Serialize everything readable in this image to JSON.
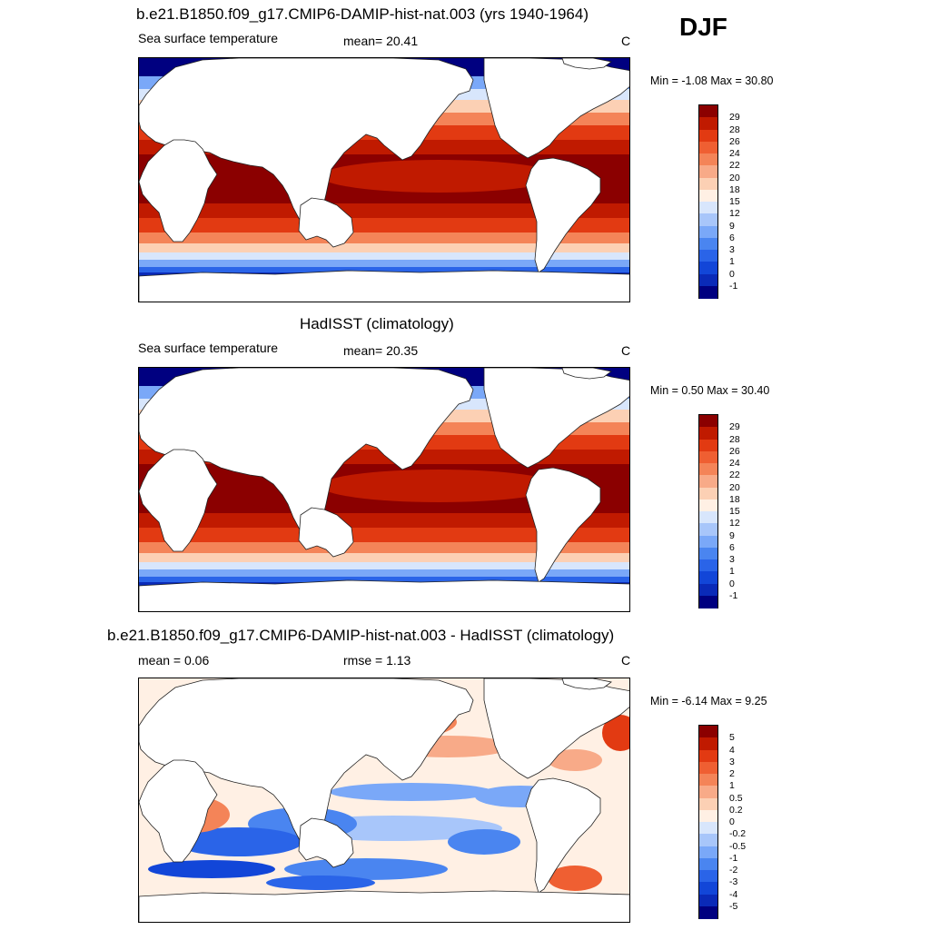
{
  "season": "DJF",
  "colors": {
    "abs": [
      "#000080",
      "#0a2ab8",
      "#1246d8",
      "#2a64e8",
      "#4a85f0",
      "#7aa8f8",
      "#a8c6fa",
      "#d8e6fc",
      "#fff0e4",
      "#fcd0b4",
      "#f8aa88",
      "#f48458",
      "#ef5f32",
      "#e23a12",
      "#c01a00",
      "#8b0000"
    ],
    "diff": [
      "#000080",
      "#0a2ab8",
      "#1246d8",
      "#2a64e8",
      "#4a85f0",
      "#7aa8f8",
      "#a8c6fa",
      "#d8e6fc",
      "#fff0e4",
      "#fcd0b4",
      "#f8aa88",
      "#f48458",
      "#ef5f32",
      "#e23a12",
      "#c01a00",
      "#8b0000"
    ]
  },
  "panels": [
    {
      "title": "b.e21.B1850.f09_g17.CMIP6-DAMIP-hist-nat.003 (yrs 1940-1964)",
      "left": "Sea surface temperature",
      "center": "mean=  20.41",
      "units": "C",
      "minmax": "Min =  -1.08 Max =  30.80",
      "levels": [
        "29",
        "28",
        "26",
        "24",
        "22",
        "20",
        "18",
        "15",
        "12",
        "9",
        "6",
        "3",
        "1",
        "0",
        "-1"
      ]
    },
    {
      "title": "HadISST (climatology)",
      "left": "Sea surface temperature",
      "center": "mean=  20.35",
      "units": "C",
      "minmax": "Min =   0.50 Max =  30.40",
      "levels": [
        "29",
        "28",
        "26",
        "24",
        "22",
        "20",
        "18",
        "15",
        "12",
        "9",
        "6",
        "3",
        "1",
        "0",
        "-1"
      ]
    },
    {
      "title": "b.e21.B1850.f09_g17.CMIP6-DAMIP-hist-nat.003 - HadISST (climatology)",
      "left": "mean =   0.06",
      "center": "rmse =   1.13",
      "units": "C",
      "minmax": "Min =  -6.14 Max =   9.25",
      "levels": [
        "5",
        "4",
        "3",
        "2",
        "1",
        "0.5",
        "0.2",
        "0",
        "-0.2",
        "-0.5",
        "-1",
        "-2",
        "-3",
        "-4",
        "-5"
      ]
    }
  ]
}
